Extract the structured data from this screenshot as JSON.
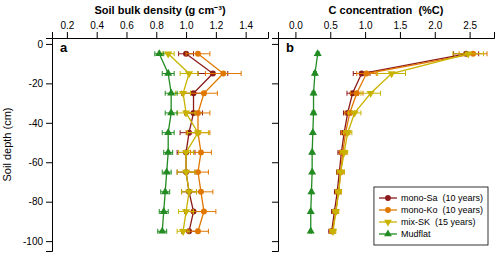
{
  "chart_data": [
    {
      "type": "line",
      "title": "Soil bulk density (g cm⁻³)",
      "ylabel": "Soil depth (cm)",
      "annotations": [
        "a"
      ],
      "y": [
        -5,
        -15,
        -25,
        -35,
        -45,
        -55,
        -65,
        -75,
        -85,
        -95
      ],
      "series": [
        {
          "color": "#8B1A1A",
          "marker": "circle",
          "values": [
            1.0,
            1.18,
            1.05,
            1.05,
            1.02,
            1.0,
            1.0,
            1.02,
            1.05,
            1.02
          ],
          "errors": [
            0.05,
            0.1,
            0.08,
            0.06,
            0.06,
            0.06,
            0.06,
            0.05,
            0.06,
            0.05
          ]
        },
        {
          "color": "#E07800",
          "marker": "circle",
          "values": [
            1.08,
            1.25,
            1.12,
            1.08,
            1.08,
            1.1,
            1.08,
            1.1,
            1.12,
            1.08
          ],
          "errors": [
            0.08,
            0.12,
            0.09,
            0.08,
            0.08,
            0.07,
            0.07,
            0.08,
            0.08,
            0.07
          ]
        },
        {
          "color": "#C8B400",
          "marker": "triangle-down",
          "values": [
            0.88,
            1.02,
            0.98,
            1.0,
            1.08,
            1.0,
            1.0,
            1.02,
            1.0,
            0.98
          ],
          "errors": [
            0.04,
            0.06,
            0.05,
            0.06,
            0.07,
            0.05,
            0.06,
            0.05,
            0.05,
            0.04
          ]
        },
        {
          "color": "#228B22",
          "marker": "triangle-up",
          "values": [
            0.82,
            0.88,
            0.9,
            0.9,
            0.88,
            0.88,
            0.87,
            0.86,
            0.85,
            0.84
          ],
          "errors": [
            0.03,
            0.04,
            0.04,
            0.04,
            0.04,
            0.03,
            0.03,
            0.03,
            0.03,
            0.03
          ]
        }
      ],
      "xlim": [
        0.1,
        1.55
      ],
      "xticks": [
        0.2,
        0.4,
        0.6,
        0.8,
        {
          "value": 1,
          "label": "1.0"
        },
        1.2,
        1.4
      ],
      "ylim": [
        -105,
        3
      ],
      "yticks": [
        0,
        -20,
        -40,
        -60,
        -80,
        -100
      ],
      "grid": false
    },
    {
      "type": "line",
      "title": "C concentration  (%C)",
      "annotations": [
        "b"
      ],
      "y": [
        -5,
        -15,
        -25,
        -35,
        -45,
        -55,
        -65,
        -75,
        -85,
        -95
      ],
      "series": [
        {
          "name": "mono-Sa  (10 years)",
          "color": "#8B1A1A",
          "marker": "circle",
          "values": [
            2.45,
            0.95,
            0.82,
            0.75,
            0.7,
            0.66,
            0.63,
            0.6,
            0.56,
            0.52
          ],
          "errors": [
            0.18,
            0.12,
            0.08,
            0.06,
            0.05,
            0.05,
            0.04,
            0.04,
            0.04,
            0.04
          ]
        },
        {
          "name": "mono-Ko  (10 years)",
          "color": "#E07800",
          "marker": "circle",
          "values": [
            2.55,
            1.02,
            0.88,
            0.78,
            0.72,
            0.68,
            0.65,
            0.62,
            0.58,
            0.53
          ],
          "errors": [
            0.2,
            0.14,
            0.09,
            0.07,
            0.06,
            0.05,
            0.05,
            0.04,
            0.04,
            0.04
          ]
        },
        {
          "name": "mix-SK  (15 years)",
          "color": "#C8B400",
          "marker": "triangle-down",
          "values": [
            2.48,
            1.38,
            1.08,
            0.85,
            0.75,
            0.7,
            0.65,
            0.62,
            0.58,
            0.54
          ],
          "errors": [
            0.22,
            0.2,
            0.14,
            0.09,
            0.06,
            0.05,
            0.05,
            0.04,
            0.04,
            0.04
          ]
        },
        {
          "name": "Mudflat",
          "color": "#228B22",
          "marker": "triangle-up",
          "values": [
            0.32,
            0.28,
            0.26,
            0.26,
            0.25,
            0.24,
            0.24,
            0.23,
            0.22,
            0.22
          ],
          "errors": [
            0.02,
            0.02,
            0.02,
            0.02,
            0.01,
            0.01,
            0.01,
            0.01,
            0.01,
            0.01
          ]
        }
      ],
      "xlim": [
        -0.25,
        2.85
      ],
      "xticks": [
        {
          "value": 0,
          "label": "0.0"
        },
        0.5,
        {
          "value": 1,
          "label": "1.0"
        },
        1.5,
        {
          "value": 2,
          "label": "2.0"
        },
        2.5
      ],
      "ylim": [
        -105,
        3
      ],
      "yticks": [
        0,
        -20,
        -40,
        -60,
        -80,
        -100
      ],
      "tick_labels": "x",
      "legend": "lower right",
      "grid": false
    }
  ]
}
